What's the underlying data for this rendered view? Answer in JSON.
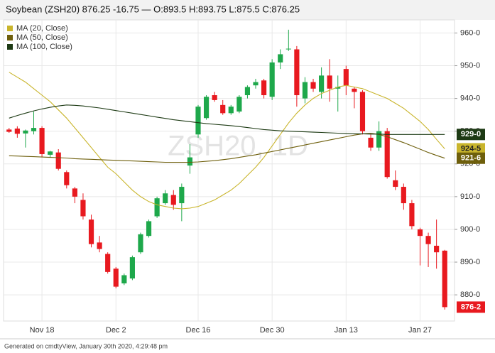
{
  "chart_data": {
    "type": "candlestick",
    "title": "Soybean (ZSH20) 876.25 -16.75 — O:893.5 H:893.75 L:875.5 C:876.25",
    "watermark": "ZSH20, 1D",
    "footer": "Generated on cmdtyView, January 30th 2020, 4:29:48 pm",
    "categories": [
      null,
      null,
      null,
      null,
      "Nov 18",
      null,
      null,
      null,
      null,
      null,
      null,
      null,
      null,
      "Dec 2",
      null,
      null,
      null,
      null,
      null,
      null,
      null,
      null,
      null,
      "Dec 16",
      null,
      null,
      null,
      null,
      null,
      null,
      null,
      null,
      "Dec 30",
      null,
      null,
      null,
      null,
      null,
      null,
      null,
      null,
      "Jan 13",
      null,
      null,
      null,
      null,
      null,
      null,
      null,
      null,
      "Jan 27",
      null,
      null,
      null
    ],
    "candles": {
      "up_color": "#1ea84b",
      "down_color": "#e8191f",
      "last_value_label": "876-2",
      "open": [
        930.5,
        930.8,
        929.3,
        930,
        931,
        922.8,
        923.5,
        917.5,
        912.5,
        909,
        903,
        896,
        892.5,
        888,
        883.5,
        885,
        893,
        898,
        904,
        908,
        910.5,
        908,
        919.5,
        929,
        934,
        941,
        938,
        935.5,
        936,
        941,
        944,
        945.5,
        940.5,
        951,
        955,
        955,
        940,
        945,
        942,
        947,
        943,
        949,
        943,
        942,
        928,
        925,
        930,
        915,
        913,
        908,
        900,
        898,
        895,
        893.5
      ],
      "high": [
        931,
        931.5,
        930.5,
        936,
        931.5,
        924,
        924.5,
        918,
        913,
        911,
        904.5,
        898,
        893,
        888.5,
        886.5,
        892,
        899,
        903,
        910,
        912,
        912,
        914,
        926,
        938,
        941,
        942,
        939.5,
        938,
        941,
        944,
        946,
        946,
        952,
        955,
        961,
        956,
        946.5,
        946,
        949.5,
        952,
        947,
        950,
        943.5,
        942.5,
        929,
        933,
        931,
        918,
        914,
        909,
        900.5,
        899,
        903,
        893.75
      ],
      "low": [
        929.5,
        928,
        925,
        929,
        922,
        922,
        918,
        912.5,
        908,
        903,
        894.5,
        893,
        886.5,
        882,
        883,
        884.5,
        892.5,
        897.5,
        903.5,
        907.5,
        906,
        902.5,
        917,
        928,
        933.5,
        939,
        935,
        935,
        935.5,
        940,
        943,
        940,
        939.5,
        949,
        954.5,
        937.5,
        938.5,
        942,
        940,
        939,
        936,
        941,
        937,
        929,
        924,
        924,
        915.5,
        912,
        906,
        900,
        889,
        888.5,
        888,
        875.5
      ],
      "close": [
        929.8,
        929.2,
        930.2,
        931,
        923,
        923.8,
        918.5,
        913.5,
        910,
        904,
        895.5,
        894,
        887,
        882.5,
        886,
        891.5,
        898.5,
        902.5,
        909.5,
        911,
        907.5,
        913,
        922,
        937.5,
        940.5,
        939.5,
        935.5,
        937.5,
        940.5,
        943.5,
        945,
        941,
        951,
        953.5,
        955.2,
        941,
        945,
        943,
        947,
        943,
        943.5,
        944,
        942,
        930,
        925,
        930,
        916,
        913,
        908,
        901,
        898,
        895.5,
        893,
        876.25
      ]
    },
    "series": [
      {
        "name": "MA (20, Close)",
        "color": "#c9b52c",
        "label_text_color": "#222222",
        "last_value_label": "924-5",
        "values": [
          948,
          946.5,
          945,
          943,
          941,
          939,
          936.5,
          934,
          931,
          928,
          925,
          922,
          919,
          917,
          914.5,
          912,
          910,
          908.5,
          907.5,
          907,
          906.5,
          906.3,
          906.5,
          907,
          908,
          909,
          910.5,
          912,
          914,
          916.5,
          919,
          922,
          925.5,
          929,
          932.5,
          935.5,
          938,
          940,
          941.5,
          942.5,
          943.5,
          944,
          943.5,
          943,
          942,
          941,
          940,
          938.5,
          937,
          935,
          933,
          930.5,
          927.5,
          924.625
        ]
      },
      {
        "name": "MA (50, Close)",
        "color": "#6e5f0c",
        "label_text_color": "#ffffff",
        "last_value_label": "921-6",
        "values": [
          922.5,
          922.4,
          922.3,
          922.2,
          922.1,
          922,
          921.9,
          921.8,
          921.6,
          921.5,
          921.4,
          921.3,
          921.2,
          921.1,
          921,
          920.9,
          920.8,
          920.7,
          920.6,
          920.5,
          920.5,
          920.5,
          920.5,
          920.6,
          920.8,
          921,
          921.3,
          921.6,
          922,
          922.4,
          922.8,
          923.3,
          923.8,
          924.3,
          924.8,
          925.3,
          925.8,
          926.3,
          926.8,
          927.3,
          927.8,
          928.3,
          928.8,
          929.2,
          929.4,
          929,
          928.3,
          927.4,
          926.5,
          925.5,
          924.5,
          923.5,
          922.6,
          921.75
        ]
      },
      {
        "name": "MA (100, Close)",
        "color": "#1d3a14",
        "label_text_color": "#ffffff",
        "last_value_label": "929-0",
        "values": [
          934,
          934.8,
          935.5,
          936.2,
          936.8,
          937.3,
          937.7,
          938,
          937.9,
          937.7,
          937.4,
          937.1,
          936.7,
          936.3,
          935.9,
          935.5,
          935.1,
          934.7,
          934.3,
          933.9,
          933.5,
          933.2,
          932.9,
          932.6,
          932.3,
          932.1,
          931.9,
          931.7,
          931.4,
          931.1,
          930.8,
          930.5,
          930.3,
          930.1,
          930,
          929.9,
          929.8,
          929.7,
          929.6,
          929.5,
          929.4,
          929.3,
          929.2,
          929.2,
          929.1,
          929.1,
          929,
          929,
          929,
          929,
          929,
          929,
          929,
          929
        ]
      }
    ],
    "ylim": [
      872,
      964
    ],
    "yticks": [
      {
        "value": 880,
        "label": "880-0"
      },
      {
        "value": 890,
        "label": "890-0"
      },
      {
        "value": 900,
        "label": "900-0"
      },
      {
        "value": 910,
        "label": "910-0"
      },
      {
        "value": 920,
        "label": "920-0"
      },
      {
        "value": 930,
        "label": "930-0"
      },
      {
        "value": 940,
        "label": "940-0"
      },
      {
        "value": 950,
        "label": "950-0"
      },
      {
        "value": 960,
        "label": "960-0"
      }
    ],
    "grid": true
  }
}
